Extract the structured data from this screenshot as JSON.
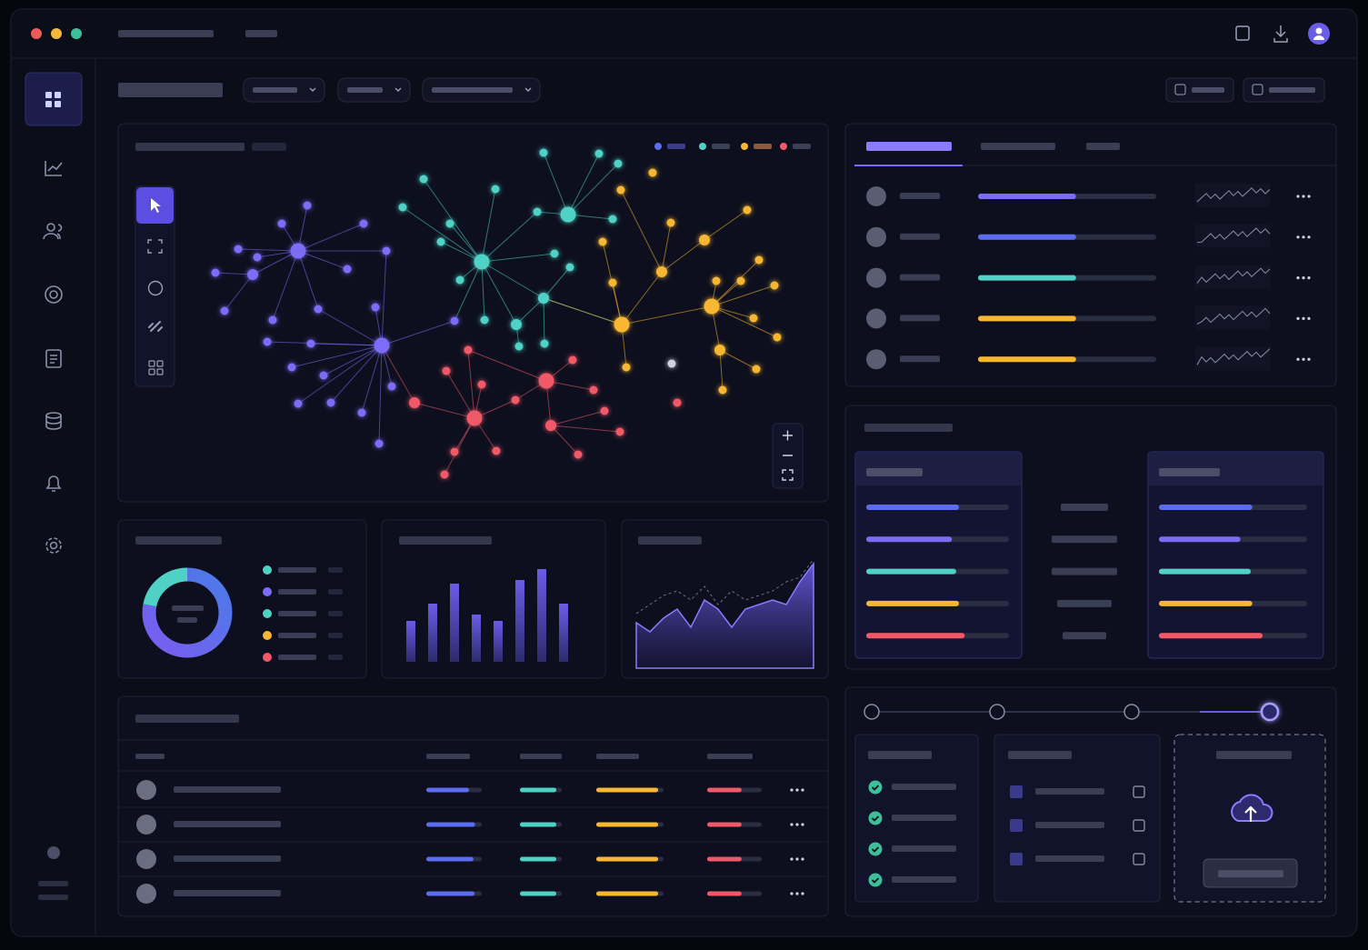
{
  "donut": {
    "values": [
      78,
      22
    ]
  },
  "bar_chart": {
    "values": [
      45,
      64,
      86,
      52,
      45,
      90,
      102,
      64
    ]
  },
  "area_chart": {
    "values": [
      50,
      40,
      55,
      65,
      45,
      75,
      65,
      45,
      65,
      70,
      75,
      70,
      95,
      115
    ],
    "dashed": [
      60,
      70,
      80,
      85,
      75,
      90,
      70,
      85,
      75,
      80,
      85,
      95,
      100,
      120
    ]
  },
  "list_progress": [
    55,
    55,
    55,
    55,
    55
  ],
  "table_progress": [
    [
      77,
      87,
      92,
      63
    ],
    [
      88,
      87,
      92,
      63
    ],
    [
      85,
      87,
      92,
      63
    ],
    [
      87,
      87,
      92,
      63
    ]
  ],
  "compare": {
    "left": [
      65,
      60,
      63,
      65,
      69
    ],
    "right": [
      63,
      55,
      62,
      63,
      70
    ]
  }
}
